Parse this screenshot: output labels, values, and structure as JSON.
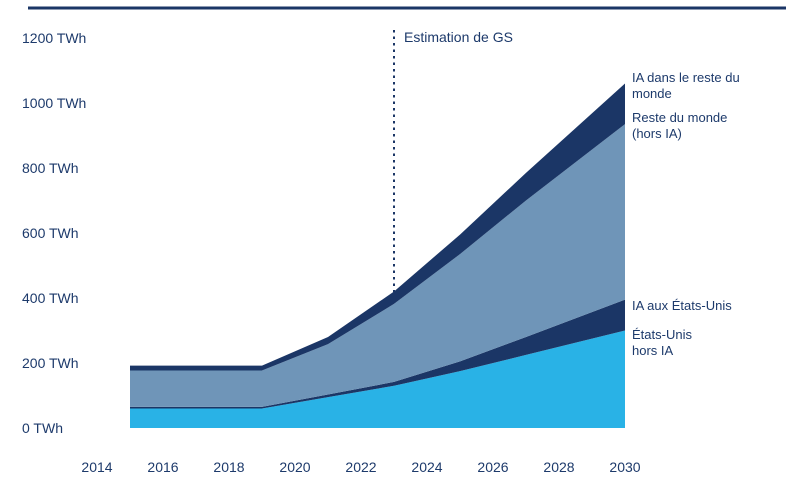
{
  "chart_data": {
    "type": "area",
    "stacked": true,
    "title": "",
    "xlabel": "",
    "ylabel": "",
    "x": [
      2015,
      2019,
      2021,
      2023,
      2025,
      2027,
      2030
    ],
    "x_ticks": [
      2014,
      2016,
      2018,
      2020,
      2022,
      2024,
      2026,
      2028,
      2030
    ],
    "y_ticks": [
      0,
      200,
      400,
      600,
      800,
      1000,
      1200
    ],
    "y_tick_suffix": " TWh",
    "ylim": [
      0,
      1200
    ],
    "xlim": [
      2014,
      2030
    ],
    "grid": false,
    "legend_position": "right",
    "series": [
      {
        "id": "us-hors-ia",
        "name": "États-Unis hors IA",
        "color": "#29b2e6",
        "values": [
          60,
          60,
          95,
          130,
          175,
          225,
          300
        ]
      },
      {
        "id": "ia-us",
        "name": "IA aux États-Unis",
        "color": "#1b3666",
        "values": [
          5,
          5,
          8,
          12,
          30,
          55,
          95
        ]
      },
      {
        "id": "rdm-hors-ia",
        "name": "Reste du monde (hors IA)",
        "color": "#6f95b8",
        "values": [
          112,
          112,
          155,
          240,
          330,
          420,
          540
        ]
      },
      {
        "id": "ia-rdm",
        "name": "IA dans le reste du monde",
        "color": "#1b3666",
        "values": [
          15,
          15,
          22,
          38,
          60,
          85,
          125
        ]
      }
    ],
    "annotation": {
      "text": "Estimation de GS",
      "x": 2023
    }
  },
  "colors": {
    "text": "#1d3a6b",
    "rule": "#1b3666",
    "background": "#ffffff"
  }
}
